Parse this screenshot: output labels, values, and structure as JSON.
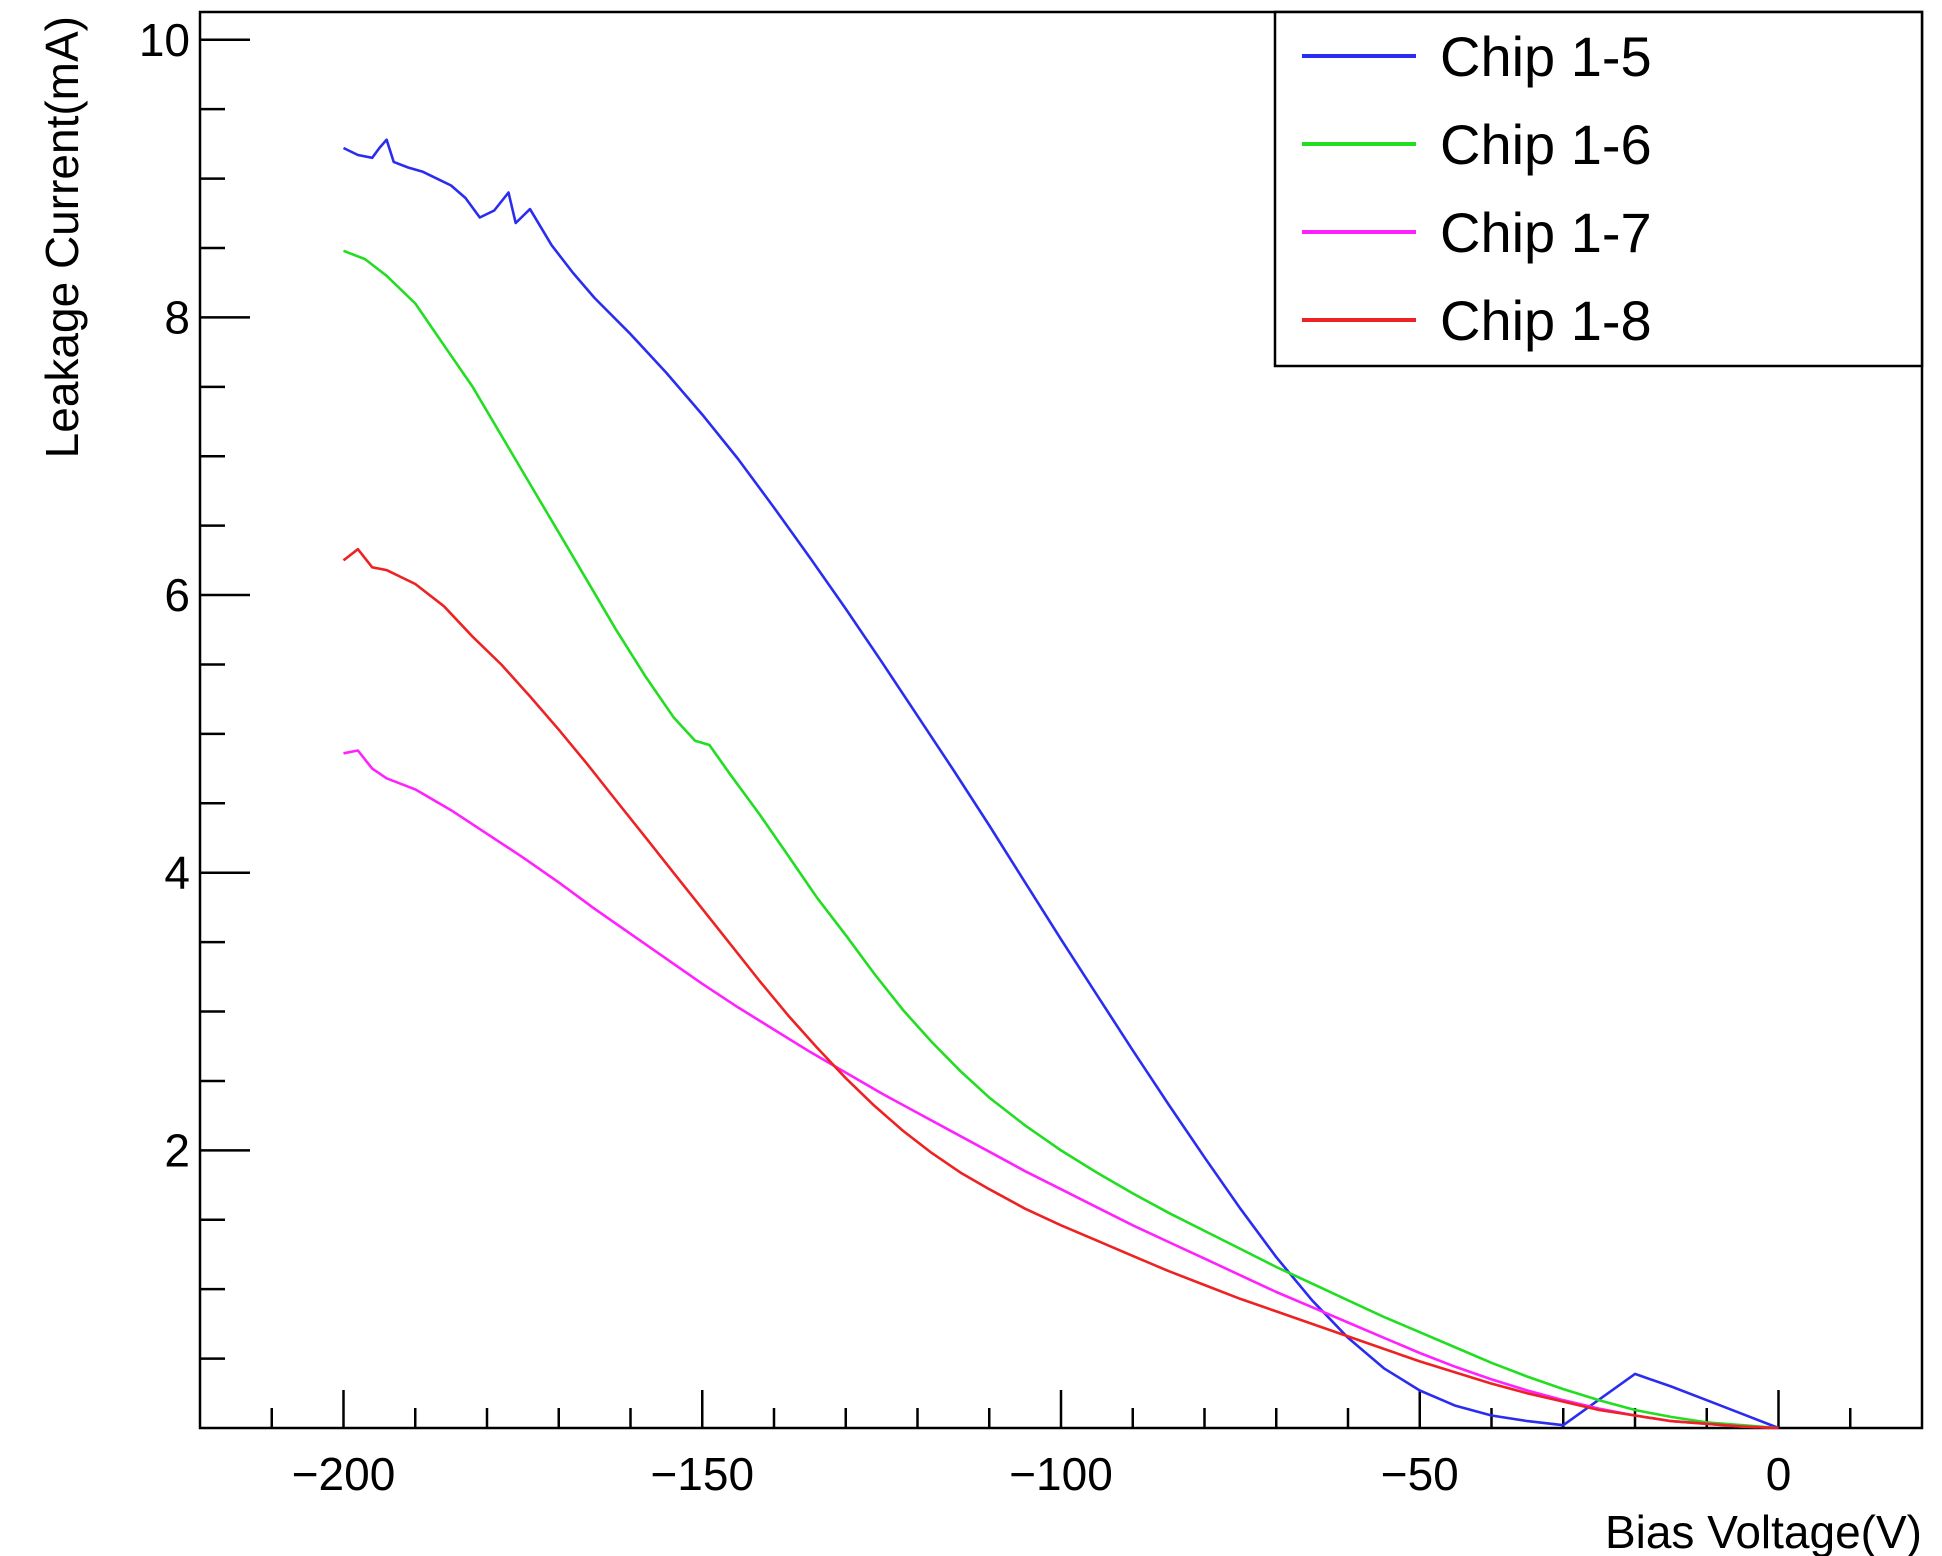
{
  "chart_data": {
    "type": "line",
    "xlabel": "Bias Voltage(V)",
    "ylabel": "Leakage Current(mA)",
    "xlim": [
      -220,
      20
    ],
    "ylim": [
      0,
      10.2
    ],
    "x_ticks": [
      -200,
      -150,
      -100,
      -50,
      0
    ],
    "x_tick_labels": [
      "−200",
      "−150",
      "−100",
      "−50",
      "0"
    ],
    "y_ticks": [
      2,
      4,
      6,
      8,
      10
    ],
    "y_tick_labels": [
      "2",
      "4",
      "6",
      "8",
      "10"
    ],
    "grid": false,
    "legend_position": "top-right",
    "series": [
      {
        "name": "Chip 1-5",
        "color": "#2a2df0",
        "points": [
          [
            -200,
            9.22
          ],
          [
            -198,
            9.17
          ],
          [
            -196,
            9.15
          ],
          [
            -195,
            9.22
          ],
          [
            -194,
            9.28
          ],
          [
            -193,
            9.12
          ],
          [
            -191,
            9.08
          ],
          [
            -189,
            9.05
          ],
          [
            -187,
            9.0
          ],
          [
            -185,
            8.95
          ],
          [
            -183,
            8.86
          ],
          [
            -181,
            8.72
          ],
          [
            -179,
            8.77
          ],
          [
            -177,
            8.9
          ],
          [
            -176,
            8.68
          ],
          [
            -174,
            8.78
          ],
          [
            -171,
            8.52
          ],
          [
            -168,
            8.32
          ],
          [
            -165,
            8.14
          ],
          [
            -160,
            7.88
          ],
          [
            -155,
            7.6
          ],
          [
            -150,
            7.3
          ],
          [
            -145,
            6.98
          ],
          [
            -140,
            6.63
          ],
          [
            -135,
            6.27
          ],
          [
            -130,
            5.9
          ],
          [
            -125,
            5.52
          ],
          [
            -120,
            5.13
          ],
          [
            -115,
            4.74
          ],
          [
            -110,
            4.34
          ],
          [
            -105,
            3.93
          ],
          [
            -100,
            3.52
          ],
          [
            -95,
            3.12
          ],
          [
            -90,
            2.72
          ],
          [
            -85,
            2.33
          ],
          [
            -80,
            1.95
          ],
          [
            -75,
            1.58
          ],
          [
            -70,
            1.23
          ],
          [
            -65,
            0.92
          ],
          [
            -60,
            0.65
          ],
          [
            -55,
            0.43
          ],
          [
            -50,
            0.27
          ],
          [
            -45,
            0.16
          ],
          [
            -40,
            0.09
          ],
          [
            -35,
            0.05
          ],
          [
            -30,
            0.02
          ],
          [
            -20,
            0.39
          ],
          [
            -15,
            0.3
          ],
          [
            -10,
            0.2
          ],
          [
            -5,
            0.1
          ],
          [
            0,
            0.0
          ]
        ]
      },
      {
        "name": "Chip 1-6",
        "color": "#22dd22",
        "points": [
          [
            -200,
            8.48
          ],
          [
            -197,
            8.42
          ],
          [
            -194,
            8.3
          ],
          [
            -190,
            8.1
          ],
          [
            -186,
            7.8
          ],
          [
            -182,
            7.5
          ],
          [
            -178,
            7.15
          ],
          [
            -174,
            6.8
          ],
          [
            -170,
            6.45
          ],
          [
            -166,
            6.1
          ],
          [
            -162,
            5.75
          ],
          [
            -158,
            5.42
          ],
          [
            -154,
            5.12
          ],
          [
            -151,
            4.95
          ],
          [
            -149,
            4.92
          ],
          [
            -146,
            4.7
          ],
          [
            -142,
            4.42
          ],
          [
            -138,
            4.12
          ],
          [
            -134,
            3.82
          ],
          [
            -130,
            3.55
          ],
          [
            -126,
            3.27
          ],
          [
            -122,
            3.01
          ],
          [
            -118,
            2.78
          ],
          [
            -114,
            2.57
          ],
          [
            -110,
            2.38
          ],
          [
            -105,
            2.18
          ],
          [
            -100,
            2.0
          ],
          [
            -95,
            1.84
          ],
          [
            -90,
            1.69
          ],
          [
            -85,
            1.55
          ],
          [
            -80,
            1.42
          ],
          [
            -75,
            1.29
          ],
          [
            -70,
            1.16
          ],
          [
            -65,
            1.04
          ],
          [
            -60,
            0.92
          ],
          [
            -55,
            0.8
          ],
          [
            -50,
            0.69
          ],
          [
            -45,
            0.58
          ],
          [
            -40,
            0.47
          ],
          [
            -35,
            0.37
          ],
          [
            -30,
            0.28
          ],
          [
            -25,
            0.2
          ],
          [
            -20,
            0.13
          ],
          [
            -15,
            0.08
          ],
          [
            -10,
            0.04
          ],
          [
            -5,
            0.02
          ],
          [
            0,
            0.0
          ]
        ]
      },
      {
        "name": "Chip 1-7",
        "color": "#ff22ff",
        "points": [
          [
            -200,
            4.86
          ],
          [
            -198,
            4.88
          ],
          [
            -196,
            4.75
          ],
          [
            -194,
            4.68
          ],
          [
            -190,
            4.6
          ],
          [
            -185,
            4.45
          ],
          [
            -180,
            4.28
          ],
          [
            -175,
            4.11
          ],
          [
            -170,
            3.93
          ],
          [
            -165,
            3.74
          ],
          [
            -160,
            3.56
          ],
          [
            -155,
            3.38
          ],
          [
            -150,
            3.2
          ],
          [
            -145,
            3.03
          ],
          [
            -140,
            2.87
          ],
          [
            -135,
            2.71
          ],
          [
            -130,
            2.56
          ],
          [
            -125,
            2.41
          ],
          [
            -120,
            2.27
          ],
          [
            -115,
            2.13
          ],
          [
            -110,
            1.99
          ],
          [
            -105,
            1.85
          ],
          [
            -100,
            1.72
          ],
          [
            -95,
            1.59
          ],
          [
            -90,
            1.46
          ],
          [
            -85,
            1.34
          ],
          [
            -80,
            1.22
          ],
          [
            -75,
            1.1
          ],
          [
            -70,
            0.98
          ],
          [
            -65,
            0.87
          ],
          [
            -60,
            0.76
          ],
          [
            -55,
            0.65
          ],
          [
            -50,
            0.54
          ],
          [
            -45,
            0.44
          ],
          [
            -40,
            0.35
          ],
          [
            -35,
            0.27
          ],
          [
            -30,
            0.2
          ],
          [
            -25,
            0.14
          ],
          [
            -20,
            0.09
          ],
          [
            -15,
            0.05
          ],
          [
            -10,
            0.03
          ],
          [
            -5,
            0.01
          ],
          [
            0,
            0.0
          ]
        ]
      },
      {
        "name": "Chip 1-8",
        "color": "#ee2222",
        "points": [
          [
            -200,
            6.25
          ],
          [
            -198,
            6.33
          ],
          [
            -196,
            6.2
          ],
          [
            -194,
            6.18
          ],
          [
            -190,
            6.08
          ],
          [
            -186,
            5.92
          ],
          [
            -182,
            5.7
          ],
          [
            -178,
            5.5
          ],
          [
            -174,
            5.27
          ],
          [
            -170,
            5.03
          ],
          [
            -166,
            4.78
          ],
          [
            -162,
            4.52
          ],
          [
            -158,
            4.26
          ],
          [
            -154,
            4.0
          ],
          [
            -150,
            3.74
          ],
          [
            -146,
            3.48
          ],
          [
            -142,
            3.22
          ],
          [
            -138,
            2.97
          ],
          [
            -134,
            2.74
          ],
          [
            -130,
            2.52
          ],
          [
            -126,
            2.32
          ],
          [
            -122,
            2.14
          ],
          [
            -118,
            1.98
          ],
          [
            -114,
            1.84
          ],
          [
            -110,
            1.72
          ],
          [
            -105,
            1.58
          ],
          [
            -100,
            1.46
          ],
          [
            -95,
            1.35
          ],
          [
            -90,
            1.24
          ],
          [
            -85,
            1.13
          ],
          [
            -80,
            1.03
          ],
          [
            -75,
            0.93
          ],
          [
            -70,
            0.84
          ],
          [
            -65,
            0.75
          ],
          [
            -60,
            0.66
          ],
          [
            -55,
            0.57
          ],
          [
            -50,
            0.48
          ],
          [
            -45,
            0.4
          ],
          [
            -40,
            0.32
          ],
          [
            -35,
            0.25
          ],
          [
            -30,
            0.19
          ],
          [
            -25,
            0.13
          ],
          [
            -20,
            0.09
          ],
          [
            -15,
            0.05
          ],
          [
            -10,
            0.03
          ],
          [
            -5,
            0.01
          ],
          [
            0,
            0.0
          ]
        ]
      }
    ]
  }
}
